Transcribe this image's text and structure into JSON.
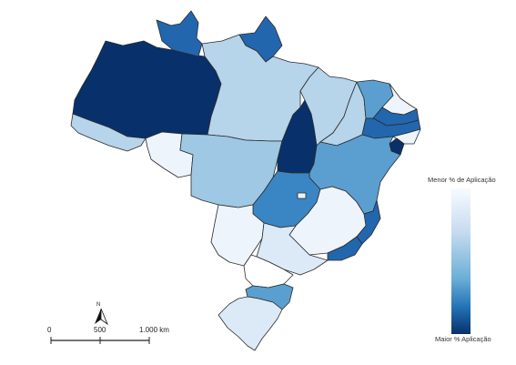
{
  "legend": {
    "top_label": "Menor % de Aplicação",
    "bottom_label": "Maior % Aplicação",
    "color_low": "#f7fbff",
    "color_high": "#08306b"
  },
  "scale_bar": {
    "label_start": "0",
    "label_mid": "500",
    "label_end": "1.000 km"
  },
  "north_arrow": {
    "label": "N",
    "icon": "north-arrow-icon"
  },
  "colors": {
    "very_light": "#eef4fb",
    "light": "#dce9f6",
    "light_mid": "#b6d4ea",
    "mid": "#9ec8e4",
    "mid_strong": "#5b9fd0",
    "strong": "#3a86c4",
    "dark": "#2266ae",
    "darkest": "#08306b"
  }
}
